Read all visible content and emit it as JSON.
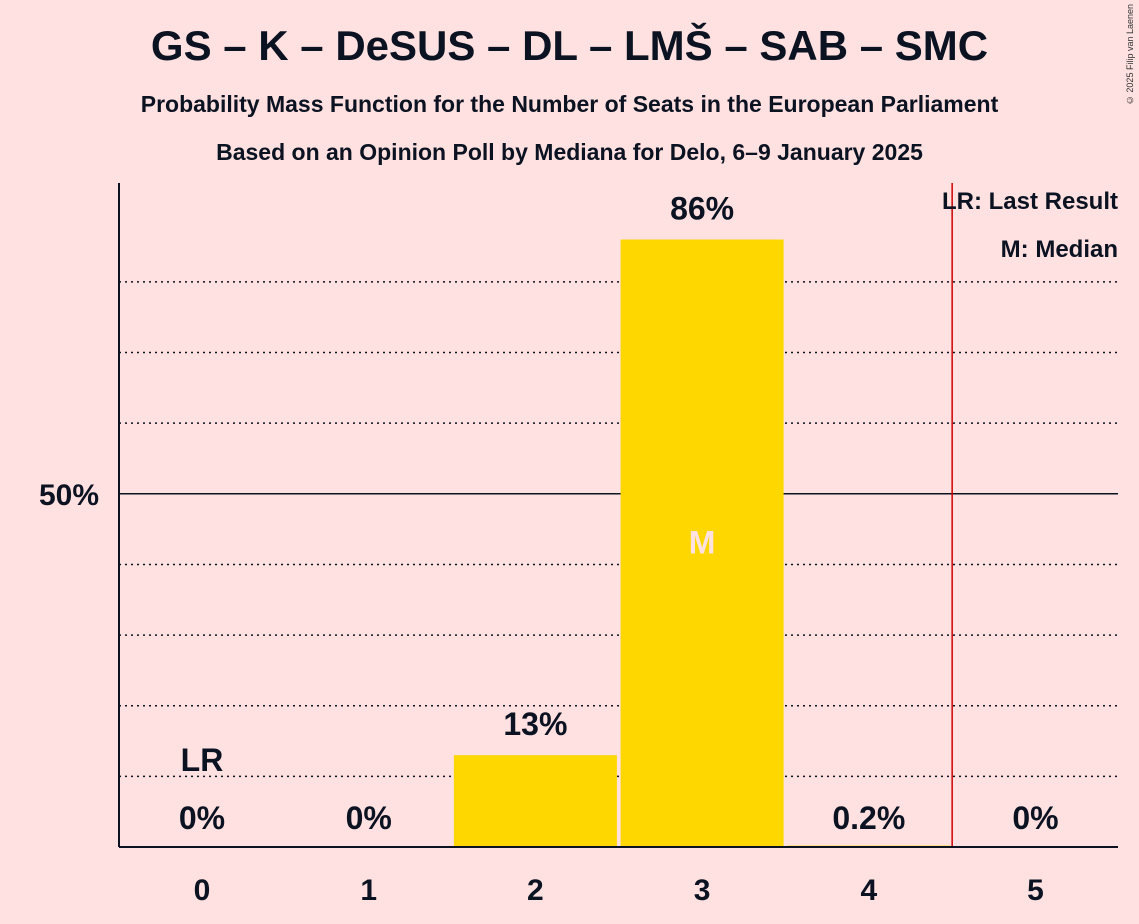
{
  "header": {
    "title": "GS – K – DeSUS – DL – LMŠ – SAB – SMC",
    "subtitle": "Probability Mass Function for the Number of Seats in the European Parliament",
    "source_line": "Based on an Opinion Poll by Mediana for Delo, 6–9 January 2025",
    "copyright": "© 2025 Filip van Laenen"
  },
  "legend": {
    "last_result": "LR: Last Result",
    "median": "M: Median"
  },
  "colors": {
    "background": "#FFE1E1",
    "bar": "#FFD700",
    "last_result_line": "#CC0000",
    "median_text": "#FFE1E1"
  },
  "chart_data": {
    "type": "bar",
    "categories": [
      "0",
      "1",
      "2",
      "3",
      "4",
      "5"
    ],
    "values": [
      0,
      0,
      13,
      86,
      0.2,
      0
    ],
    "value_labels": [
      "0%",
      "0%",
      "13%",
      "86%",
      "0.2%",
      "0%"
    ],
    "ylim": [
      0,
      94
    ],
    "y_ticks": [
      10,
      20,
      30,
      40,
      50,
      60,
      70,
      80
    ],
    "y_tick_labels": {
      "50": "50%"
    },
    "last_result_seats": 0,
    "last_result_marker": "LR",
    "last_result_line_at": 4.5,
    "median_seats": 3,
    "median_marker": "M",
    "grid": "dotted",
    "legend_position": "top-right"
  }
}
